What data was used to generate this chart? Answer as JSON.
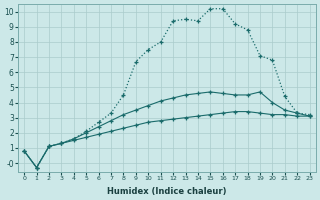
{
  "background_color": "#cce8e8",
  "grid_color": "#aacccc",
  "line_color": "#1a6b6b",
  "xlim": [
    -0.5,
    23.5
  ],
  "ylim": [
    -0.6,
    10.5
  ],
  "xlabel": "Humidex (Indice chaleur)",
  "xticks": [
    0,
    1,
    2,
    3,
    4,
    5,
    6,
    7,
    8,
    9,
    10,
    11,
    12,
    13,
    14,
    15,
    16,
    17,
    18,
    19,
    20,
    21,
    22,
    23
  ],
  "yticks": [
    0,
    1,
    2,
    3,
    4,
    5,
    6,
    7,
    8,
    9,
    10
  ],
  "series": [
    {
      "x": [
        0,
        1,
        2,
        3,
        4,
        5,
        6,
        7,
        8,
        9,
        10,
        11,
        12,
        13,
        14,
        15,
        16,
        17,
        18,
        19,
        20,
        21,
        22,
        23
      ],
      "y": [
        0.8,
        -0.3,
        1.1,
        1.3,
        1.5,
        1.7,
        1.9,
        2.1,
        2.3,
        2.5,
        2.7,
        2.8,
        2.9,
        3.0,
        3.1,
        3.2,
        3.3,
        3.4,
        3.4,
        3.3,
        3.2,
        3.2,
        3.1,
        3.1
      ],
      "linestyle": "-",
      "marker": "+",
      "linewidth": 0.8,
      "markersize": 3.5
    },
    {
      "x": [
        0,
        1,
        2,
        3,
        4,
        5,
        6,
        7,
        8,
        9,
        10,
        11,
        12,
        13,
        14,
        15,
        16,
        17,
        18,
        19,
        20,
        21,
        22,
        23
      ],
      "y": [
        0.8,
        -0.3,
        1.1,
        1.3,
        1.6,
        2.0,
        2.4,
        2.8,
        3.2,
        3.5,
        3.8,
        4.1,
        4.3,
        4.5,
        4.6,
        4.7,
        4.6,
        4.5,
        4.5,
        4.7,
        4.0,
        3.5,
        3.3,
        3.1
      ],
      "linestyle": "-",
      "marker": "+",
      "linewidth": 0.8,
      "markersize": 3.5
    },
    {
      "x": [
        0,
        1,
        2,
        3,
        4,
        5,
        6,
        7,
        8,
        9,
        10,
        11,
        12,
        13,
        14,
        15,
        16,
        17,
        18,
        19,
        20,
        21,
        22,
        23
      ],
      "y": [
        0.8,
        -0.3,
        1.1,
        1.3,
        1.6,
        2.1,
        2.7,
        3.3,
        4.5,
        6.7,
        7.5,
        8.0,
        9.4,
        9.5,
        9.4,
        10.2,
        10.2,
        9.2,
        8.8,
        7.1,
        6.8,
        4.4,
        3.3,
        3.2
      ],
      "linestyle": ":",
      "marker": "+",
      "linewidth": 0.9,
      "markersize": 3.5
    }
  ]
}
